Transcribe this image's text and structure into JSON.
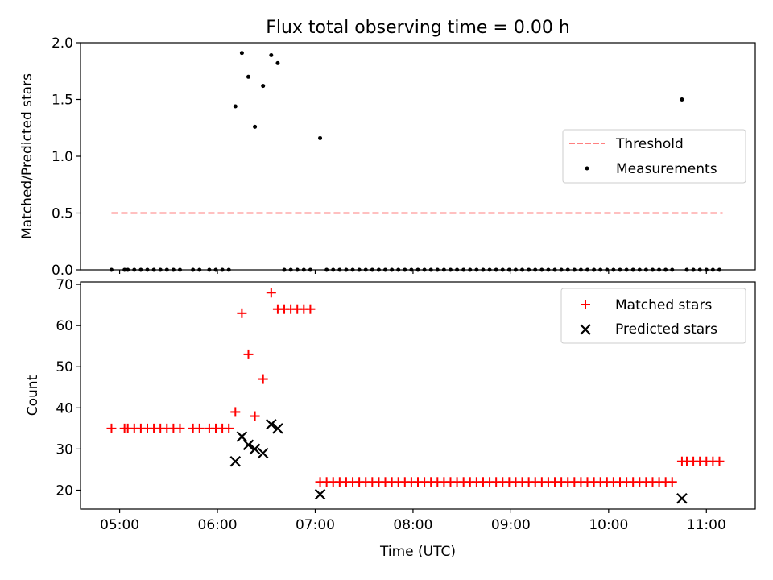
{
  "chart_data": [
    {
      "type": "scatter",
      "title": "Flux total observing time = 0.00 h",
      "xlabel": "",
      "ylabel": "Matched/Predicted stars",
      "xlim": [
        "04:36",
        "11:30"
      ],
      "ylim": [
        0,
        2.0
      ],
      "yticks": [
        0.0,
        0.5,
        1.0,
        1.5,
        2.0
      ],
      "ytick_labels": [
        "0.0",
        "0.5",
        "1.0",
        "1.5",
        "2.0"
      ],
      "xticks": [
        "05:00",
        "06:00",
        "07:00",
        "08:00",
        "09:00",
        "10:00",
        "11:00"
      ],
      "show_xtick_labels": false,
      "legend": {
        "position": "center-right",
        "entries": [
          {
            "label": "Threshold",
            "color": "#ff8080",
            "style": "dashed-line"
          },
          {
            "label": "Measurements",
            "color": "#000000",
            "style": "dot"
          }
        ]
      },
      "series": [
        {
          "name": "Threshold",
          "kind": "dashed-line",
          "color": "#ff8080",
          "x": [
            "04:55",
            "11:10"
          ],
          "y": [
            0.5,
            0.5
          ]
        },
        {
          "name": "Measurements",
          "kind": "dot",
          "color": "#000000",
          "points": [
            [
              "04:55",
              0
            ],
            [
              "05:03",
              0
            ],
            [
              "05:05",
              0
            ],
            [
              "05:09",
              0
            ],
            [
              "05:13",
              0
            ],
            [
              "05:17",
              0
            ],
            [
              "05:21",
              0
            ],
            [
              "05:25",
              0
            ],
            [
              "05:29",
              0
            ],
            [
              "05:33",
              0
            ],
            [
              "05:37",
              0
            ],
            [
              "05:45",
              0
            ],
            [
              "05:49",
              0
            ],
            [
              "05:55",
              0
            ],
            [
              "05:59",
              0
            ],
            [
              "06:03",
              0
            ],
            [
              "06:07",
              0
            ],
            [
              "06:11",
              1.44
            ],
            [
              "06:15",
              1.91
            ],
            [
              "06:19",
              1.7
            ],
            [
              "06:23",
              1.26
            ],
            [
              "06:28",
              1.62
            ],
            [
              "06:33",
              1.89
            ],
            [
              "06:37",
              1.82
            ],
            [
              "06:41",
              0
            ],
            [
              "06:45",
              0
            ],
            [
              "06:49",
              0
            ],
            [
              "06:53",
              0
            ],
            [
              "06:57",
              0
            ],
            [
              "07:03",
              1.16
            ],
            [
              "07:07",
              0
            ],
            [
              "07:11",
              0
            ],
            [
              "07:15",
              0
            ],
            [
              "07:19",
              0
            ],
            [
              "07:23",
              0
            ],
            [
              "07:27",
              0
            ],
            [
              "07:31",
              0
            ],
            [
              "07:35",
              0
            ],
            [
              "07:39",
              0
            ],
            [
              "07:43",
              0
            ],
            [
              "07:47",
              0
            ],
            [
              "07:51",
              0
            ],
            [
              "07:55",
              0
            ],
            [
              "07:59",
              0
            ],
            [
              "08:03",
              0
            ],
            [
              "08:07",
              0
            ],
            [
              "08:11",
              0
            ],
            [
              "08:15",
              0
            ],
            [
              "08:19",
              0
            ],
            [
              "08:23",
              0
            ],
            [
              "08:27",
              0
            ],
            [
              "08:31",
              0
            ],
            [
              "08:35",
              0
            ],
            [
              "08:39",
              0
            ],
            [
              "08:43",
              0
            ],
            [
              "08:47",
              0
            ],
            [
              "08:51",
              0
            ],
            [
              "08:55",
              0
            ],
            [
              "08:59",
              0
            ],
            [
              "09:03",
              0
            ],
            [
              "09:07",
              0
            ],
            [
              "09:11",
              0
            ],
            [
              "09:15",
              0
            ],
            [
              "09:19",
              0
            ],
            [
              "09:23",
              0
            ],
            [
              "09:27",
              0
            ],
            [
              "09:31",
              0
            ],
            [
              "09:35",
              0
            ],
            [
              "09:39",
              0
            ],
            [
              "09:43",
              0
            ],
            [
              "09:47",
              0
            ],
            [
              "09:51",
              0
            ],
            [
              "09:55",
              0
            ],
            [
              "09:59",
              0
            ],
            [
              "10:03",
              0
            ],
            [
              "10:07",
              0
            ],
            [
              "10:11",
              0
            ],
            [
              "10:15",
              0
            ],
            [
              "10:19",
              0
            ],
            [
              "10:23",
              0
            ],
            [
              "10:27",
              0
            ],
            [
              "10:31",
              0
            ],
            [
              "10:35",
              0
            ],
            [
              "10:39",
              0
            ],
            [
              "10:45",
              1.5
            ],
            [
              "10:48",
              0
            ],
            [
              "10:52",
              0
            ],
            [
              "10:56",
              0
            ],
            [
              "11:00",
              0
            ],
            [
              "11:04",
              0
            ],
            [
              "11:08",
              0
            ]
          ]
        }
      ]
    },
    {
      "type": "scatter",
      "title": "",
      "xlabel": "Time (UTC)",
      "ylabel": "Count",
      "xlim": [
        "04:36",
        "11:30"
      ],
      "ylim": [
        15.4,
        70.6
      ],
      "yticks": [
        20,
        30,
        40,
        50,
        60,
        70
      ],
      "ytick_labels": [
        "20",
        "30",
        "40",
        "50",
        "60",
        "70"
      ],
      "xticks": [
        "05:00",
        "06:00",
        "07:00",
        "08:00",
        "09:00",
        "10:00",
        "11:00"
      ],
      "xtick_labels": [
        "05:00",
        "06:00",
        "07:00",
        "08:00",
        "09:00",
        "10:00",
        "11:00"
      ],
      "legend": {
        "position": "top-right",
        "entries": [
          {
            "label": "Matched stars",
            "color": "#ff0000",
            "style": "plus"
          },
          {
            "label": "Predicted stars",
            "color": "#000000",
            "style": "x"
          }
        ]
      },
      "series": [
        {
          "name": "Matched stars",
          "kind": "plus",
          "color": "#ff0000",
          "points": [
            [
              "04:55",
              35
            ],
            [
              "05:03",
              35
            ],
            [
              "05:05",
              35
            ],
            [
              "05:09",
              35
            ],
            [
              "05:13",
              35
            ],
            [
              "05:17",
              35
            ],
            [
              "05:21",
              35
            ],
            [
              "05:25",
              35
            ],
            [
              "05:29",
              35
            ],
            [
              "05:33",
              35
            ],
            [
              "05:37",
              35
            ],
            [
              "05:45",
              35
            ],
            [
              "05:49",
              35
            ],
            [
              "05:55",
              35
            ],
            [
              "05:59",
              35
            ],
            [
              "06:03",
              35
            ],
            [
              "06:07",
              35
            ],
            [
              "06:11",
              39
            ],
            [
              "06:15",
              63
            ],
            [
              "06:19",
              53
            ],
            [
              "06:23",
              38
            ],
            [
              "06:28",
              47
            ],
            [
              "06:33",
              68
            ],
            [
              "06:37",
              64
            ],
            [
              "06:41",
              64
            ],
            [
              "06:45",
              64
            ],
            [
              "06:49",
              64
            ],
            [
              "06:53",
              64
            ],
            [
              "06:57",
              64
            ],
            [
              "07:03",
              22
            ],
            [
              "07:07",
              22
            ],
            [
              "07:11",
              22
            ],
            [
              "07:15",
              22
            ],
            [
              "07:19",
              22
            ],
            [
              "07:23",
              22
            ],
            [
              "07:27",
              22
            ],
            [
              "07:31",
              22
            ],
            [
              "07:35",
              22
            ],
            [
              "07:39",
              22
            ],
            [
              "07:43",
              22
            ],
            [
              "07:47",
              22
            ],
            [
              "07:51",
              22
            ],
            [
              "07:55",
              22
            ],
            [
              "07:59",
              22
            ],
            [
              "08:03",
              22
            ],
            [
              "08:07",
              22
            ],
            [
              "08:11",
              22
            ],
            [
              "08:15",
              22
            ],
            [
              "08:19",
              22
            ],
            [
              "08:23",
              22
            ],
            [
              "08:27",
              22
            ],
            [
              "08:31",
              22
            ],
            [
              "08:35",
              22
            ],
            [
              "08:39",
              22
            ],
            [
              "08:43",
              22
            ],
            [
              "08:47",
              22
            ],
            [
              "08:51",
              22
            ],
            [
              "08:55",
              22
            ],
            [
              "08:59",
              22
            ],
            [
              "09:03",
              22
            ],
            [
              "09:07",
              22
            ],
            [
              "09:11",
              22
            ],
            [
              "09:15",
              22
            ],
            [
              "09:19",
              22
            ],
            [
              "09:23",
              22
            ],
            [
              "09:27",
              22
            ],
            [
              "09:31",
              22
            ],
            [
              "09:35",
              22
            ],
            [
              "09:39",
              22
            ],
            [
              "09:43",
              22
            ],
            [
              "09:47",
              22
            ],
            [
              "09:51",
              22
            ],
            [
              "09:55",
              22
            ],
            [
              "09:59",
              22
            ],
            [
              "10:03",
              22
            ],
            [
              "10:07",
              22
            ],
            [
              "10:11",
              22
            ],
            [
              "10:15",
              22
            ],
            [
              "10:19",
              22
            ],
            [
              "10:23",
              22
            ],
            [
              "10:27",
              22
            ],
            [
              "10:31",
              22
            ],
            [
              "10:35",
              22
            ],
            [
              "10:39",
              22
            ],
            [
              "10:45",
              27
            ],
            [
              "10:48",
              27
            ],
            [
              "10:52",
              27
            ],
            [
              "10:56",
              27
            ],
            [
              "11:00",
              27
            ],
            [
              "11:04",
              27
            ],
            [
              "11:08",
              27
            ]
          ]
        },
        {
          "name": "Predicted stars",
          "kind": "x",
          "color": "#000000",
          "points": [
            [
              "06:11",
              27
            ],
            [
              "06:15",
              33
            ],
            [
              "06:19",
              31
            ],
            [
              "06:23",
              30
            ],
            [
              "06:28",
              29
            ],
            [
              "06:33",
              36
            ],
            [
              "06:37",
              35
            ],
            [
              "07:03",
              19
            ],
            [
              "10:45",
              18
            ]
          ]
        }
      ]
    }
  ]
}
